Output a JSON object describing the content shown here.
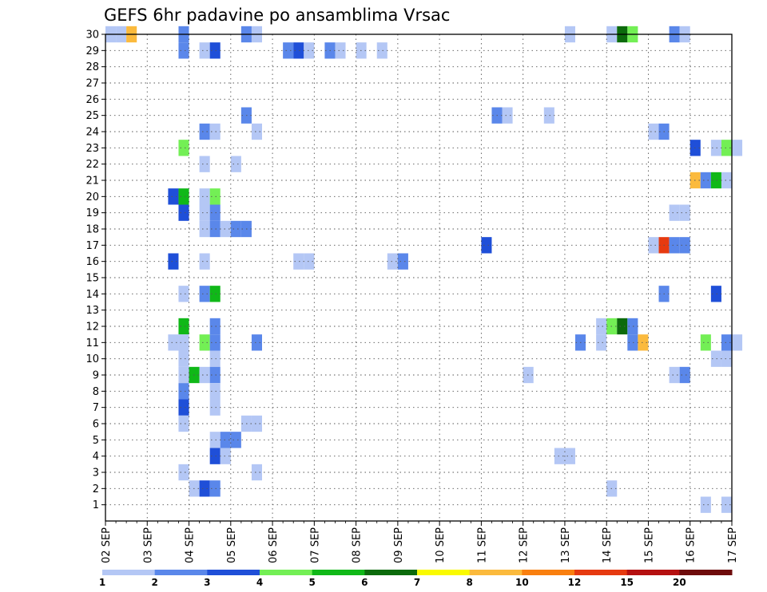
{
  "chart_data": {
    "type": "heatmap",
    "title": "GEFS 6hr padavine po ansamblima Vrsac",
    "x_tick_labels": [
      "02 SEP",
      "03 SEP",
      "04 SEP",
      "05 SEP",
      "06 SEP",
      "07 SEP",
      "08 SEP",
      "09 SEP",
      "10 SEP",
      "11 SEP",
      "12 SEP",
      "13 SEP",
      "14 SEP",
      "15 SEP",
      "16 SEP",
      "17 SEP"
    ],
    "y_tick_labels": [
      "1",
      "2",
      "3",
      "4",
      "5",
      "6",
      "7",
      "8",
      "9",
      "10",
      "11",
      "12",
      "13",
      "14",
      "15",
      "16",
      "17",
      "18",
      "19",
      "20",
      "21",
      "22",
      "23",
      "24",
      "25",
      "26",
      "27",
      "28",
      "29",
      "30"
    ],
    "x_steps": 60,
    "members": [
      0,
      30
    ],
    "grid": true,
    "colorbar": {
      "labels": [
        "1",
        "2",
        "3",
        "4",
        "5",
        "6",
        "7",
        "8",
        "10",
        "12",
        "15",
        "20"
      ],
      "colors": [
        "#b4c7f5",
        "#5a87ea",
        "#1f4fd8",
        "#73ef55",
        "#10b818",
        "#0c6a0c",
        "#fafa00",
        "#fbba3d",
        "#f97f0f",
        "#e63a10",
        "#b51010",
        "#6e0c0c"
      ]
    },
    "cells": [
      [
        0,
        30,
        1
      ],
      [
        1,
        30,
        1
      ],
      [
        2,
        30,
        8
      ],
      [
        7,
        30,
        2
      ],
      [
        13,
        30,
        2
      ],
      [
        14,
        30,
        1
      ],
      [
        44,
        30,
        1
      ],
      [
        48,
        30,
        1
      ],
      [
        49,
        30,
        6
      ],
      [
        50,
        30,
        4
      ],
      [
        54,
        30,
        2
      ],
      [
        55,
        30,
        1
      ],
      [
        7,
        29,
        2
      ],
      [
        9,
        29,
        1
      ],
      [
        10,
        29,
        3
      ],
      [
        17,
        29,
        2
      ],
      [
        18,
        29,
        3
      ],
      [
        19,
        29,
        1
      ],
      [
        21,
        29,
        2
      ],
      [
        22,
        29,
        1
      ],
      [
        26,
        29,
        1
      ],
      [
        24,
        29,
        1
      ],
      [
        37,
        25,
        2
      ],
      [
        38,
        25,
        1
      ],
      [
        42,
        25,
        1
      ],
      [
        13,
        25,
        2
      ],
      [
        9,
        24,
        2
      ],
      [
        10,
        24,
        1
      ],
      [
        14,
        24,
        1
      ],
      [
        52,
        24,
        1
      ],
      [
        53,
        24,
        2
      ],
      [
        7,
        23,
        4
      ],
      [
        56,
        23,
        3
      ],
      [
        58,
        23,
        1
      ],
      [
        59,
        23,
        4
      ],
      [
        60,
        23,
        1
      ],
      [
        9,
        22,
        1
      ],
      [
        12,
        22,
        1
      ],
      [
        56,
        21,
        8
      ],
      [
        57,
        21,
        2
      ],
      [
        58,
        21,
        5
      ],
      [
        59,
        21,
        1
      ],
      [
        6,
        20,
        3
      ],
      [
        7,
        20,
        5
      ],
      [
        9,
        20,
        1
      ],
      [
        10,
        20,
        4
      ],
      [
        7,
        19,
        3
      ],
      [
        9,
        19,
        1
      ],
      [
        10,
        19,
        2
      ],
      [
        54,
        19,
        1
      ],
      [
        55,
        19,
        1
      ],
      [
        9,
        18,
        1
      ],
      [
        10,
        18,
        2
      ],
      [
        11,
        18,
        1
      ],
      [
        12,
        18,
        2
      ],
      [
        13,
        18,
        2
      ],
      [
        36,
        17,
        3
      ],
      [
        52,
        17,
        1
      ],
      [
        53,
        17,
        10
      ],
      [
        54,
        17,
        2
      ],
      [
        55,
        17,
        2
      ],
      [
        6,
        16,
        3
      ],
      [
        9,
        16,
        1
      ],
      [
        18,
        16,
        1
      ],
      [
        19,
        16,
        1
      ],
      [
        27,
        16,
        1
      ],
      [
        28,
        16,
        2
      ],
      [
        7,
        14,
        1
      ],
      [
        9,
        14,
        2
      ],
      [
        10,
        14,
        5
      ],
      [
        53,
        14,
        2
      ],
      [
        58,
        14,
        3
      ],
      [
        7,
        12,
        5
      ],
      [
        10,
        12,
        2
      ],
      [
        47,
        12,
        1
      ],
      [
        48,
        12,
        4
      ],
      [
        49,
        12,
        6
      ],
      [
        50,
        12,
        2
      ],
      [
        6,
        11,
        1
      ],
      [
        7,
        11,
        1
      ],
      [
        9,
        11,
        4
      ],
      [
        10,
        11,
        2
      ],
      [
        14,
        11,
        2
      ],
      [
        45,
        11,
        2
      ],
      [
        47,
        11,
        1
      ],
      [
        50,
        11,
        2
      ],
      [
        51,
        11,
        8
      ],
      [
        57,
        11,
        4
      ],
      [
        59,
        11,
        2
      ],
      [
        60,
        11,
        1
      ],
      [
        7,
        10,
        1
      ],
      [
        10,
        10,
        1
      ],
      [
        58,
        10,
        1
      ],
      [
        59,
        10,
        1
      ],
      [
        7,
        9,
        1
      ],
      [
        8,
        9,
        5
      ],
      [
        9,
        9,
        1
      ],
      [
        10,
        9,
        2
      ],
      [
        40,
        9,
        1
      ],
      [
        54,
        9,
        1
      ],
      [
        55,
        9,
        2
      ],
      [
        7,
        8,
        2
      ],
      [
        10,
        8,
        1
      ],
      [
        7,
        7,
        3
      ],
      [
        10,
        7,
        1
      ],
      [
        7,
        6,
        1
      ],
      [
        13,
        6,
        1
      ],
      [
        14,
        6,
        1
      ],
      [
        10,
        5,
        1
      ],
      [
        11,
        5,
        2
      ],
      [
        12,
        5,
        2
      ],
      [
        10,
        4,
        3
      ],
      [
        11,
        4,
        1
      ],
      [
        43,
        4,
        1
      ],
      [
        44,
        4,
        1
      ],
      [
        7,
        3,
        1
      ],
      [
        14,
        3,
        1
      ],
      [
        8,
        2,
        1
      ],
      [
        9,
        2,
        3
      ],
      [
        10,
        2,
        2
      ],
      [
        48,
        2,
        1
      ],
      [
        57,
        1,
        1
      ],
      [
        59,
        1,
        1
      ]
    ]
  }
}
